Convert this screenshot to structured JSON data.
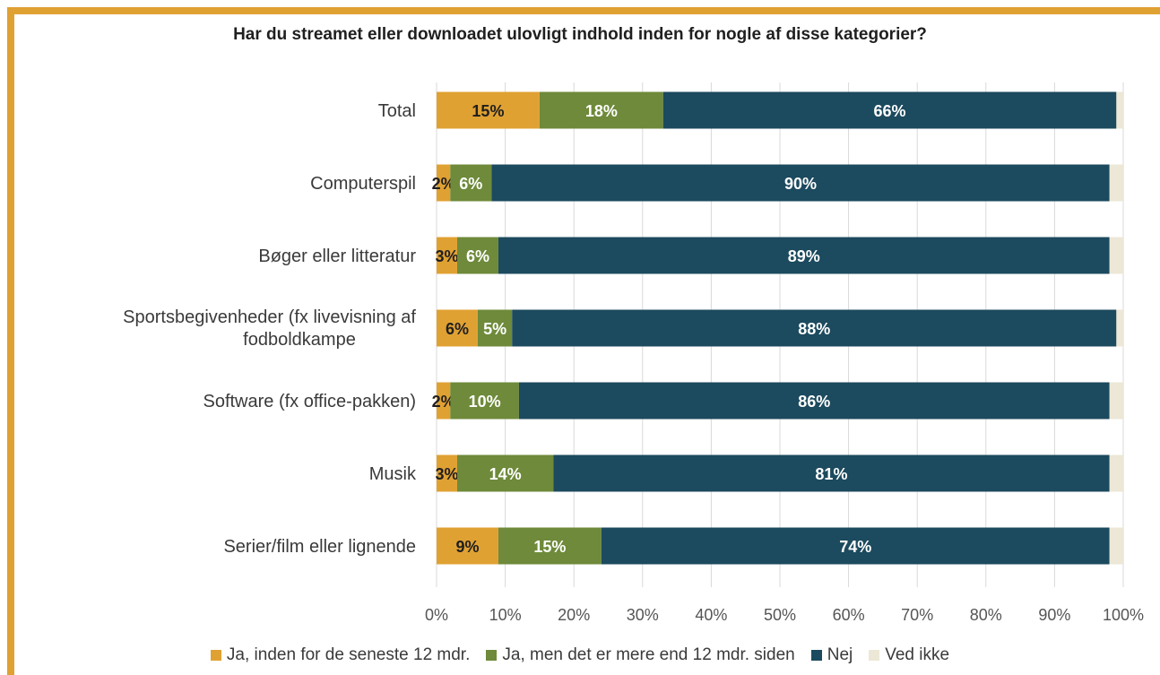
{
  "colors": {
    "border": "#e0a133",
    "ja12": "#e0a133",
    "jaMere": "#6e8a3a",
    "nej": "#1c4a5e",
    "vedIkke": "#ece7d6",
    "grid": "#d9d9d9"
  },
  "chart_data": {
    "type": "bar",
    "orientation": "horizontal",
    "stacked": true,
    "title": "Har du streamet eller downloadet ulovligt indhold inden for nogle af disse kategorier?",
    "categories": [
      "Total",
      "Computerspil",
      "Bøger eller litteratur",
      "Sportsbegivenheder (fx livevisning af fodboldkampe",
      "Software (fx office-pakken)",
      "Musik",
      "Serier/film eller lignende"
    ],
    "category_lines": [
      [
        "Total"
      ],
      [
        "Computerspil"
      ],
      [
        "Bøger eller litteratur"
      ],
      [
        "Sportsbegivenheder (fx livevisning af",
        "fodboldkampe"
      ],
      [
        "Software (fx office-pakken)"
      ],
      [
        "Musik"
      ],
      [
        "Serier/film eller lignende"
      ]
    ],
    "series": [
      {
        "name": "Ja, inden for de seneste 12 mdr.",
        "values": [
          15,
          2,
          3,
          6,
          2,
          3,
          9
        ],
        "labels": [
          "15%",
          "2%",
          "3%",
          "6%",
          "2%",
          "3%",
          "9%"
        ],
        "color": "#e0a133",
        "labelColor": "#1f1f1f"
      },
      {
        "name": "Ja, men det er mere end 12 mdr. siden",
        "values": [
          18,
          6,
          6,
          5,
          10,
          14,
          15
        ],
        "labels": [
          "18%",
          "6%",
          "6%",
          "5%",
          "10%",
          "14%",
          "15%"
        ],
        "color": "#6e8a3a",
        "labelColor": "#ffffff"
      },
      {
        "name": "Nej",
        "values": [
          66,
          90,
          89,
          88,
          86,
          81,
          74
        ],
        "labels": [
          "66%",
          "90%",
          "89%",
          "88%",
          "86%",
          "81%",
          "74%"
        ],
        "color": "#1c4a5e",
        "labelColor": "#ffffff"
      },
      {
        "name": "Ved ikke",
        "values": [
          1,
          2,
          2,
          1,
          2,
          2,
          2
        ],
        "labels": [
          "",
          "",
          "",
          "",
          "",
          "",
          ""
        ],
        "color": "#ece7d6",
        "labelColor": "#1f1f1f"
      }
    ],
    "xlim": [
      0,
      100
    ],
    "xticks": [
      "0%",
      "10%",
      "20%",
      "30%",
      "40%",
      "50%",
      "60%",
      "70%",
      "80%",
      "90%",
      "100%"
    ],
    "grid": true,
    "legend_position": "bottom"
  }
}
